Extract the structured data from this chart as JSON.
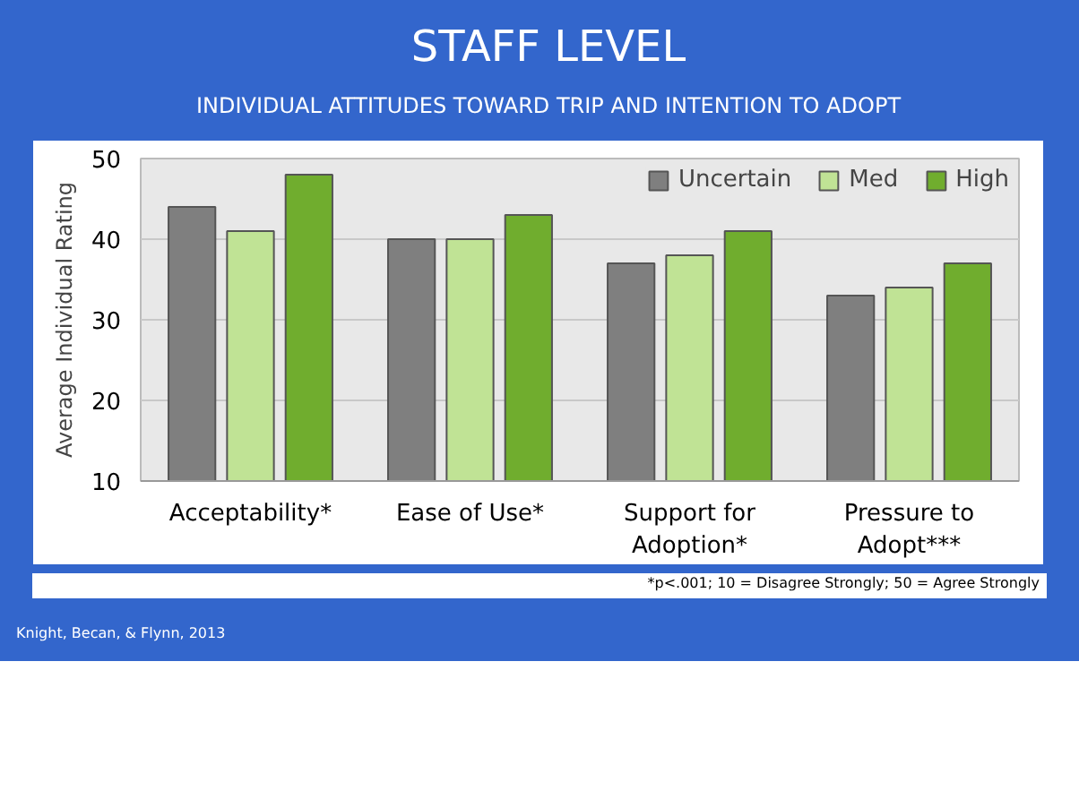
{
  "chart_data": {
    "type": "bar",
    "title": "STAFF LEVEL",
    "subtitle": "INDIVIDUAL ATTITUDES TOWARD TRIP AND INTENTION TO ADOPT",
    "ylabel": "Average Individual Rating",
    "categories": [
      "Acceptability*",
      "Ease of Use*",
      "Support for Adoption*",
      "Pressure to Adopt***"
    ],
    "series": [
      {
        "name": "Uncertain",
        "color": "#7f7f7f",
        "values": [
          44,
          40,
          37,
          33
        ]
      },
      {
        "name": "Med",
        "color": "#c0e395",
        "values": [
          41,
          40,
          38,
          34
        ]
      },
      {
        "name": "High",
        "color": "#70ad2e",
        "values": [
          48,
          43,
          41,
          37
        ]
      }
    ],
    "ylim": [
      10,
      50
    ],
    "yticks": [
      10,
      20,
      30,
      40,
      50
    ],
    "grid": "y",
    "legend": "top right",
    "annotations": [
      "*p<.001; 10 = Disagree Strongly; 50 = Agree Strongly",
      "Knight, Becan, & Flynn, 2013"
    ]
  }
}
